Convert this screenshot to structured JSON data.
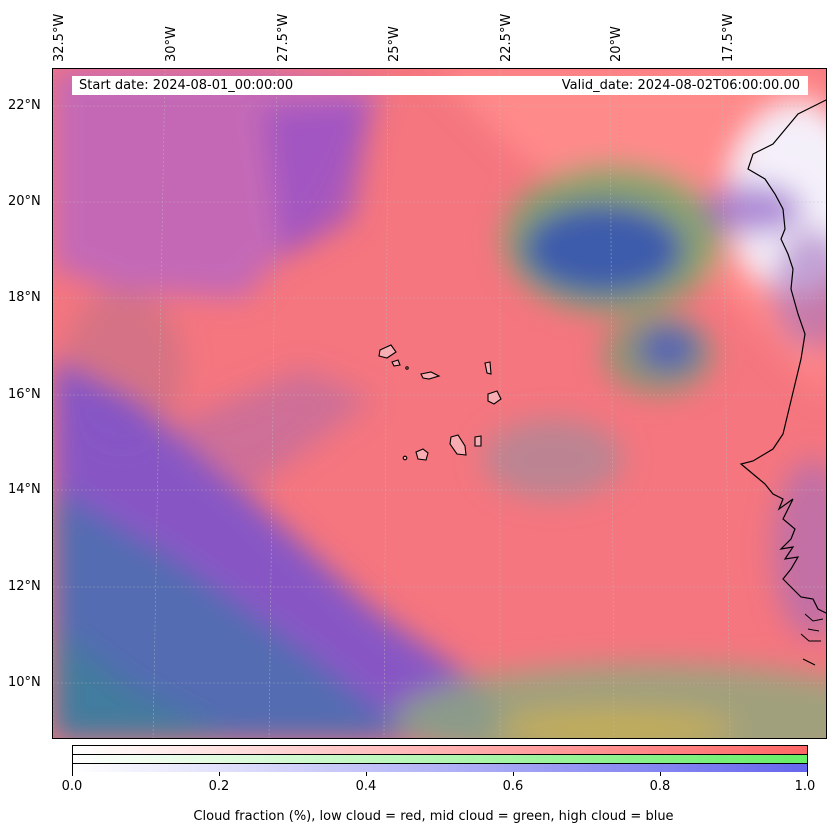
{
  "map": {
    "start_label": "Start date: 2024-08-01_00:00:00",
    "valid_label": "Valid_date: 2024-08-02T06:00:00.00",
    "lon_labels": [
      "32.5°W",
      "30°W",
      "27.5°W",
      "25°W",
      "22.5°W",
      "20°W",
      "17.5°W"
    ],
    "lat_labels": [
      "22°N",
      "20°N",
      "18°N",
      "16°N",
      "14°N",
      "12°N",
      "10°N"
    ],
    "lon_range_deg": [
      -32.5,
      -15.5
    ],
    "lat_range_deg": [
      8.9,
      22.8
    ],
    "gridlines": true,
    "layers": {
      "low_cloud_color": "#ff7f7f",
      "mid_cloud_color": "#7fff7f",
      "high_cloud_color": "#7f7fff"
    },
    "features": [
      "coastline-west-africa",
      "cape-verde-islands"
    ]
  },
  "colorbar": {
    "ticks": [
      "0.0",
      "0.2",
      "0.4",
      "0.6",
      "0.8",
      "1.0"
    ],
    "tick_values": [
      0,
      0.2,
      0.4,
      0.6,
      0.8,
      1.0
    ],
    "title": "Cloud fraction (%), low cloud = red, mid cloud = green, high cloud = blue",
    "colors": {
      "red": "#ff6666",
      "green": "#66ee66",
      "blue": "#6666ee"
    }
  }
}
